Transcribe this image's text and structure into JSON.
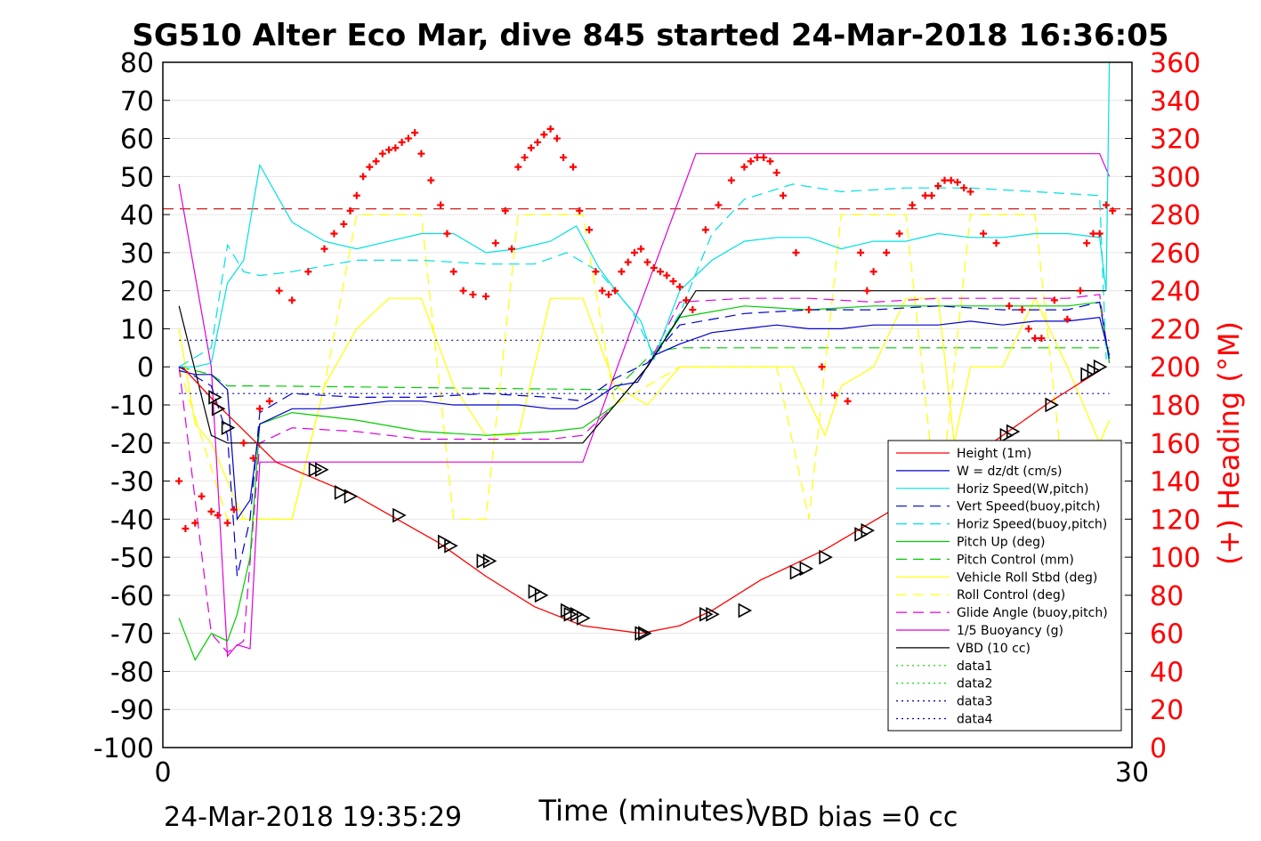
{
  "chart_data": {
    "type": "line",
    "title": "SG510 Alter Eco Mar, dive 845 started 24-Mar-2018 16:36:05",
    "xlabel": "Time (minutes)",
    "ylabel_right": "(+) Heading (°M)",
    "xlim": [
      0,
      30
    ],
    "ylim_left": [
      -100,
      80
    ],
    "ylim_right": [
      0,
      360
    ],
    "x_ticks": [
      "0",
      "30"
    ],
    "y_ticks_left": [
      "80",
      "70",
      "60",
      "50",
      "40",
      "30",
      "20",
      "10",
      "0",
      "-10",
      "-20",
      "-30",
      "-40",
      "-50",
      "-60",
      "-70",
      "-80",
      "-90",
      "-100"
    ],
    "y_ticks_right": [
      "360",
      "340",
      "320",
      "300",
      "280",
      "260",
      "240",
      "220",
      "200",
      "180",
      "160",
      "140",
      "120",
      "100",
      "80",
      "60",
      "40",
      "20",
      "0"
    ],
    "grid": "horizontal",
    "legend_position": "bottom-right",
    "footer_left": "24-Mar-2018 19:35:29",
    "footer_right": "VBD bias =0 cc",
    "series": [
      {
        "name": "Height (1m)",
        "color": "#ff0000",
        "dash": "solid",
        "x": [
          0.6,
          1.7,
          3.5,
          6.0,
          8.5,
          10.0,
          11.5,
          13.0,
          14.8,
          16.0,
          17.0,
          18.5,
          20.5,
          22.5,
          24.5,
          26.0,
          27.5,
          29.0
        ],
        "values": [
          0,
          -10,
          -25,
          -34,
          -46,
          -55,
          -63,
          -68,
          -70,
          -68,
          -64,
          -56,
          -48,
          -38,
          -27,
          -18,
          -9,
          -1
        ]
      },
      {
        "name": "W = dz/dt (cm/s)",
        "color": "#0000cc",
        "dash": "solid",
        "x": [
          0.5,
          1.0,
          1.5,
          2.0,
          2.3,
          2.7,
          3.0,
          4.0,
          5.0,
          6.0,
          7.0,
          8.0,
          9.0,
          10.0,
          11.0,
          12.0,
          12.8,
          13.3,
          14.0,
          14.7,
          15.2,
          16.0,
          17.0,
          18.0,
          19.0,
          20.0,
          21.0,
          22.0,
          23.0,
          24.0,
          25.0,
          26.0,
          27.0,
          28.0,
          29.0,
          29.3
        ],
        "values": [
          -1,
          -2,
          -2,
          -6,
          -40,
          -35,
          -15,
          -11,
          -11,
          -10,
          -9,
          -9,
          -10,
          -10,
          -10,
          -11,
          -11,
          -9,
          -5,
          -4,
          3,
          6,
          9,
          10,
          11,
          10,
          10,
          11,
          11,
          11,
          12,
          11,
          12,
          12,
          13,
          3
        ]
      },
      {
        "name": "Horiz Speed(W,pitch)",
        "color": "#00e0e0",
        "dash": "solid",
        "x": [
          0.5,
          1.0,
          1.5,
          2.0,
          2.5,
          3.0,
          4.0,
          5.0,
          6.0,
          7.0,
          8.0,
          9.0,
          10.0,
          11.0,
          12.0,
          12.8,
          13.5,
          14.2,
          14.8,
          15.2,
          16.0,
          17.0,
          18.0,
          19.0,
          20.0,
          21.0,
          22.0,
          23.0,
          24.0,
          25.0,
          26.0,
          27.0,
          28.0,
          29.0,
          29.2,
          29.3
        ],
        "values": [
          0,
          0,
          1,
          22,
          28,
          53,
          38,
          33,
          31,
          33,
          35,
          35,
          30,
          31,
          33,
          37,
          26,
          18,
          12,
          2,
          20,
          28,
          33,
          34,
          34,
          31,
          33,
          33,
          35,
          34,
          34,
          35,
          35,
          34,
          20,
          80
        ]
      },
      {
        "name": "Vert Speed(buoy,pitch)",
        "color": "#0000cc",
        "dash": "long",
        "x": [
          0.5,
          1.5,
          2.0,
          2.3,
          2.7,
          3.0,
          4.0,
          6.0,
          8.0,
          10.0,
          12.0,
          13.0,
          14.0,
          15.0,
          16.0,
          18.0,
          20.0,
          22.0,
          24.0,
          26.0,
          28.0,
          29.0,
          29.3
        ],
        "values": [
          0,
          -5,
          -18,
          -55,
          -40,
          -12,
          -7,
          -8,
          -8,
          -7,
          -8,
          -9,
          -3,
          1,
          11,
          14,
          15,
          15,
          16,
          15,
          15,
          17,
          2
        ]
      },
      {
        "name": "Horiz Speed(buoy,pitch)",
        "color": "#00e0e0",
        "dash": "long",
        "x": [
          0.5,
          1.5,
          2.0,
          2.5,
          3.0,
          4.0,
          6.0,
          8.0,
          10.0,
          11.5,
          12.5,
          13.5,
          14.5,
          15.2,
          16.0,
          17.0,
          18.0,
          19.5,
          21.0,
          23.0,
          25.0,
          27.0,
          29.0,
          29.2
        ],
        "values": [
          0,
          5,
          32,
          25,
          24,
          25,
          28,
          28,
          27,
          27,
          30,
          25,
          15,
          3,
          14,
          35,
          44,
          48,
          46,
          47,
          47,
          46,
          45,
          2
        ]
      },
      {
        "name": "Pitch Up (deg)",
        "color": "#00cc00",
        "dash": "solid",
        "x": [
          0.5,
          1.0,
          1.5,
          2.0,
          2.3,
          2.7,
          3.0,
          4.0,
          6.0,
          8.0,
          10.0,
          12.0,
          13.0,
          14.0,
          15.0,
          16.0,
          18.0,
          20.0,
          22.0,
          24.0,
          26.0,
          28.0,
          29.0,
          29.3
        ],
        "values": [
          -66,
          -77,
          -70,
          -72,
          -65,
          -50,
          -15,
          -12,
          -14,
          -17,
          -18,
          -17,
          -16,
          -10,
          0,
          13,
          16,
          15,
          16,
          16,
          16,
          16,
          17,
          1
        ]
      },
      {
        "name": "Pitch Control (mm)",
        "color": "#00cc00",
        "dash": "long",
        "x": [
          0.5,
          1.5,
          2.0,
          2.5,
          3.0,
          14.0,
          15.2,
          16.0,
          29.3
        ],
        "values": [
          0,
          -2,
          -5,
          -5,
          -5,
          -6,
          4,
          5,
          5
        ]
      },
      {
        "name": "Vehicle Roll Stbd (deg)",
        "color": "#ffff00",
        "dash": "solid",
        "x": [
          0.5,
          1.0,
          1.5,
          2.0,
          2.5,
          3.0,
          4.0,
          5.0,
          6.0,
          7.0,
          8.0,
          9.0,
          10.0,
          11.0,
          12.0,
          13.0,
          14.0,
          15.0,
          16.0,
          18.0,
          19.5,
          20.5,
          21.0,
          22.0,
          23.0,
          24.0,
          24.5,
          25.0,
          26.0,
          27.0,
          28.0,
          29.0,
          29.3
        ],
        "values": [
          10,
          -15,
          -20,
          -30,
          -40,
          -40,
          -40,
          -5,
          10,
          18,
          18,
          -5,
          -18,
          -18,
          18,
          18,
          -5,
          -10,
          0,
          0,
          0,
          -18,
          -5,
          0,
          18,
          18,
          -20,
          0,
          0,
          18,
          0,
          -20,
          -14
        ]
      },
      {
        "name": "Roll Control (deg)",
        "color": "#ffff00",
        "dash": "long",
        "x": [
          0.5,
          2.0,
          3.0,
          4.0,
          5.0,
          6.0,
          7.0,
          8.0,
          9.0,
          10.0,
          11.0,
          12.0,
          13.0,
          14.0,
          16.0,
          19.0,
          20.0,
          21.0,
          22.0,
          23.0,
          24.0,
          25.0,
          26.0,
          27.0,
          28.0,
          29.0
        ],
        "values": [
          0,
          -40,
          -40,
          -40,
          -5,
          40,
          40,
          40,
          -40,
          -40,
          40,
          40,
          40,
          -10,
          0,
          0,
          -40,
          40,
          40,
          40,
          -40,
          40,
          40,
          40,
          -40,
          -20
        ]
      },
      {
        "name": "Glide Angle (buoy,pitch)",
        "color": "#dd00dd",
        "dash": "long",
        "x": [
          0.5,
          1.5,
          2.0,
          2.5,
          3.0,
          4.0,
          6.0,
          8.0,
          10.0,
          12.0,
          13.0,
          14.0,
          15.0,
          16.0,
          18.0,
          20.0,
          22.0,
          24.0,
          26.0,
          28.0,
          29.0,
          29.3
        ],
        "values": [
          0,
          -70,
          -75,
          -72,
          -20,
          -16,
          -17,
          -19,
          -19,
          -19,
          -18,
          -10,
          0,
          17,
          18,
          18,
          17,
          18,
          18,
          18,
          19,
          1
        ]
      },
      {
        "name": "1/5 Buoyancy (g)",
        "color": "#dd00dd",
        "dash": "solid",
        "x": [
          0.5,
          1.5,
          2.0,
          2.3,
          2.7,
          3.0,
          13.0,
          14.5,
          16.5,
          29.0,
          29.3
        ],
        "values": [
          48,
          0,
          -76,
          -73,
          -74,
          -25,
          -25,
          10,
          56,
          56,
          50
        ]
      },
      {
        "name": "VBD (10 cc)",
        "color": "#000000",
        "dash": "solid",
        "x": [
          0.5,
          1.5,
          2.0,
          13.0,
          15.0,
          16.5,
          29.2
        ],
        "values": [
          16,
          -18,
          -20,
          -20,
          0,
          20,
          20
        ]
      },
      {
        "name": "data1",
        "color": "#00cc00",
        "dash": "dot",
        "x": [],
        "values": []
      },
      {
        "name": "data2",
        "color": "#00cc00",
        "dash": "dot",
        "x": [],
        "values": []
      },
      {
        "name": "data3",
        "color": "#0000aa",
        "dash": "dot",
        "x": [
          0.5,
          29.3
        ],
        "values": [
          7,
          7
        ]
      },
      {
        "name": "data4",
        "color": "#0000aa",
        "dash": "dot",
        "x": [
          0.5,
          29.3
        ],
        "values": [
          -7,
          -7
        ]
      }
    ],
    "target_heading": {
      "color": "#cc0000",
      "dash": "long",
      "value_deg": 283
    },
    "heading_points": {
      "color": "#ff0000",
      "marker": "+",
      "x": [
        0.5,
        0.7,
        1.0,
        1.2,
        1.5,
        1.7,
        2.0,
        2.2,
        2.5,
        2.8,
        3.0,
        3.3,
        3.6,
        4.0,
        4.5,
        5.0,
        5.3,
        5.6,
        5.8,
        6.0,
        6.2,
        6.4,
        6.6,
        6.8,
        7.0,
        7.2,
        7.4,
        7.6,
        7.8,
        8.0,
        8.3,
        8.6,
        8.8,
        9.0,
        9.3,
        9.6,
        10.0,
        10.3,
        10.6,
        10.8,
        11.0,
        11.2,
        11.4,
        11.6,
        11.8,
        12.0,
        12.2,
        12.4,
        12.7,
        12.9,
        13.2,
        13.4,
        13.6,
        13.8,
        14.0,
        14.2,
        14.4,
        14.6,
        14.8,
        15.0,
        15.2,
        15.4,
        15.6,
        15.8,
        16.0,
        16.2,
        16.4,
        16.8,
        17.2,
        17.6,
        18.0,
        18.2,
        18.4,
        18.6,
        18.8,
        19.0,
        19.2,
        19.6,
        20.0,
        20.4,
        20.8,
        21.2,
        21.6,
        21.8,
        22.0,
        22.4,
        22.8,
        23.2,
        23.6,
        23.8,
        24.0,
        24.2,
        24.4,
        24.6,
        24.8,
        25.0,
        25.4,
        25.8,
        26.2,
        26.6,
        26.8,
        27.0,
        27.2,
        27.6,
        28.0,
        28.4,
        28.6,
        28.8,
        29.0,
        29.2,
        29.4
      ],
      "values": [
        140,
        115,
        118,
        132,
        124,
        122,
        118,
        125,
        160,
        152,
        178,
        182,
        240,
        235,
        250,
        262,
        270,
        275,
        282,
        290,
        300,
        305,
        308,
        312,
        314,
        315,
        318,
        320,
        323,
        312,
        298,
        285,
        270,
        250,
        240,
        238,
        237,
        265,
        282,
        262,
        305,
        310,
        315,
        318,
        322,
        325,
        320,
        310,
        305,
        282,
        272,
        250,
        240,
        238,
        240,
        250,
        255,
        260,
        262,
        255,
        252,
        250,
        248,
        245,
        242,
        235,
        230,
        272,
        285,
        298,
        305,
        308,
        310,
        310,
        308,
        302,
        290,
        260,
        230,
        200,
        185,
        182,
        260,
        240,
        250,
        260,
        270,
        285,
        290,
        290,
        295,
        298,
        298,
        297,
        294,
        292,
        270,
        265,
        232,
        230,
        220,
        215,
        215,
        235,
        225,
        240,
        265,
        270,
        270,
        285,
        282
      ]
    },
    "triangle_markers": {
      "color": "#000000",
      "marker": "right-triangle",
      "x": [
        1.6,
        1.7,
        2.0,
        4.7,
        4.9,
        5.5,
        5.8,
        7.3,
        8.7,
        8.9,
        9.9,
        10.1,
        11.5,
        11.7,
        12.5,
        12.6,
        12.8,
        13.0,
        14.8,
        14.9,
        16.8,
        17.0,
        18.0,
        19.6,
        19.9,
        20.5,
        21.6,
        21.8,
        22.9,
        23.1,
        24.5,
        24.7,
        24.8,
        25.0,
        25.2,
        26.1,
        26.3,
        27.5,
        28.6,
        28.8,
        29.0
      ],
      "values": [
        -8,
        -11,
        -16,
        -27,
        -27,
        -33,
        -34,
        -39,
        -46,
        -47,
        -51,
        -51,
        -59,
        -60,
        -64,
        -65,
        -65,
        -66,
        -70,
        -70,
        -65,
        -65,
        -64,
        -54,
        -53,
        -50,
        -44,
        -43,
        -36,
        -35,
        -28,
        -27,
        -26,
        -25,
        -24,
        -18,
        -17,
        -10,
        -2,
        -1,
        0
      ]
    },
    "legend_entries": [
      "Height (1m)",
      "W = dz/dt (cm/s)",
      "Horiz Speed(W,pitch)",
      "Vert Speed(buoy,pitch)",
      "Horiz Speed(buoy,pitch)",
      "Pitch Up (deg)",
      "Pitch Control (mm)",
      "Vehicle Roll Stbd (deg)",
      "Roll Control (deg)",
      "Glide Angle (buoy,pitch)",
      "1/5 Buoyancy (g)",
      "VBD (10 cc)",
      "data1",
      "data2",
      "data3",
      "data4"
    ]
  }
}
